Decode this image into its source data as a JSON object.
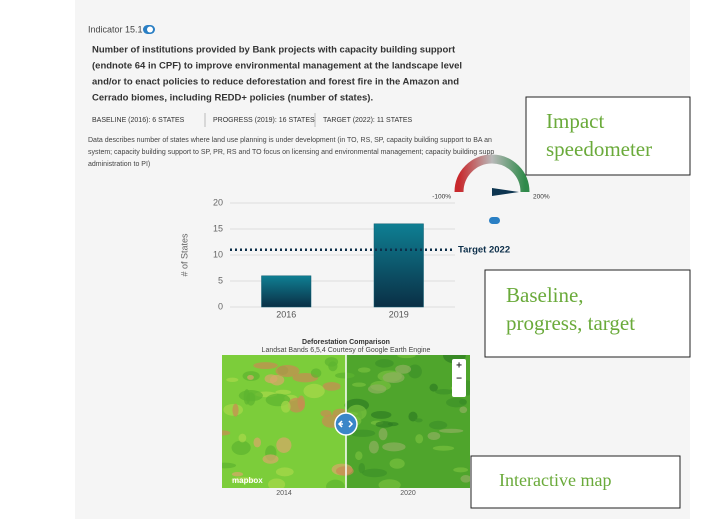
{
  "indicator": "Indicator 15.1",
  "description_lines": [
    "Number of institutions provided by Bank projects with capacity building support",
    "(endnote 64 in CPF) to improve environmental management at the landscape level",
    "and/or to enact policies to reduce deforestation and forest fire in the Amazon and",
    "Cerrado biomes, including REDD+ policies (number of states)."
  ],
  "stats": [
    "BASELINE (2016): 6 STATES",
    "PROGRESS (2019): 16 STATES",
    "TARGET (2022): 11 STATES"
  ],
  "note_lines": [
    "Data describes number of states where land use planning is under development (in TO, RS, SP, capacity building support to BA an",
    "system; capacity building support to SP, PR, RS and TO focus on licensing and environmental management; capacity building supp",
    "administration to PI)"
  ],
  "gauge": {
    "min": -100,
    "max": 200,
    "value": 200,
    "ticks": [
      {
        "value": -100,
        "label": "-100%"
      },
      {
        "value": 200,
        "label": "200%"
      }
    ]
  },
  "chart_data": {
    "type": "bar",
    "y_label": "# of States",
    "categories": [
      "2016",
      "2019"
    ],
    "values": [
      6,
      16
    ],
    "color": "#0d5c70",
    "target": {
      "value": 11,
      "label": "Target 2022"
    },
    "ylim": [
      0,
      20
    ],
    "yticks": [
      0,
      5,
      10,
      15,
      20
    ],
    "grid": true
  },
  "map": {
    "title": "Deforestation Comparison",
    "subtitle": "Landsat Bands 6,5,4 Courtesy of Google Earth Engine",
    "left_label": "2014",
    "right_label": "2020",
    "logo": "mapbox",
    "zoom_in": "+",
    "zoom_out": "−"
  },
  "annotations": [
    "Impact speedometer",
    "Baseline, progress, target",
    "Interactive map"
  ]
}
